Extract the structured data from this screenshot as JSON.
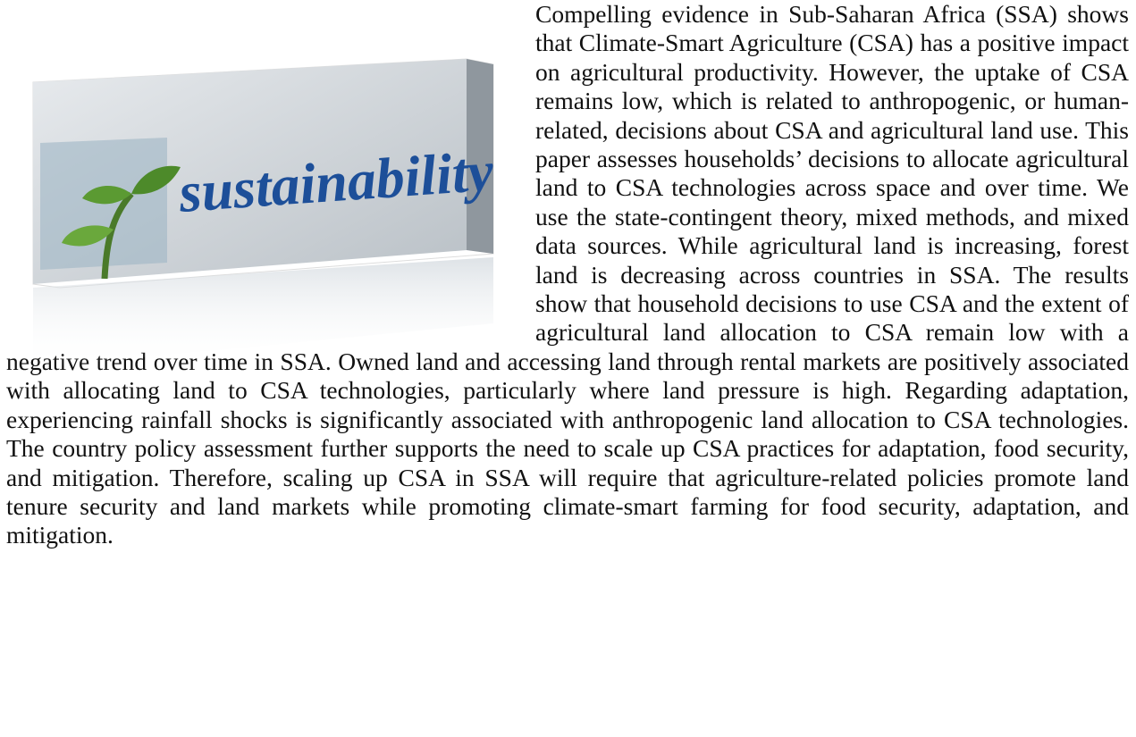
{
  "image": {
    "label": "sustainability"
  },
  "paragraph": "Compelling evidence in Sub-Saharan Africa (SSA) shows that Climate-Smart Agriculture (CSA) has a positive impact on agricultural productivity. However, the uptake of CSA remains low, which is related to anthropogenic, or human-related, decisions about CSA and agricultural land use. This paper assesses households’ decisions to allocate agricultural land to CSA technologies across space and over time. We use the state-contingent theory, mixed methods, and mixed data sources. While agricultural land is increasing, forest land is decreasing across countries in SSA. The results show that household decisions to use CSA and the extent of agricultural land allocation to CSA remain low with a negative trend over time in SSA. Owned land and accessing land through rental markets are positively associated with allocating land to CSA technologies, particularly where land pressure is high. Regarding adaptation, experiencing rainfall shocks is significantly associated with anthropogenic land allocation to CSA technologies. The country policy assessment further supports the need to scale up CSA practices for adaptation, food security, and mitigation. Therefore, scaling up CSA in SSA will require that agriculture-related policies promote land tenure security and land markets while promoting climate-smart farming for food security, adaptation, and mitigation."
}
